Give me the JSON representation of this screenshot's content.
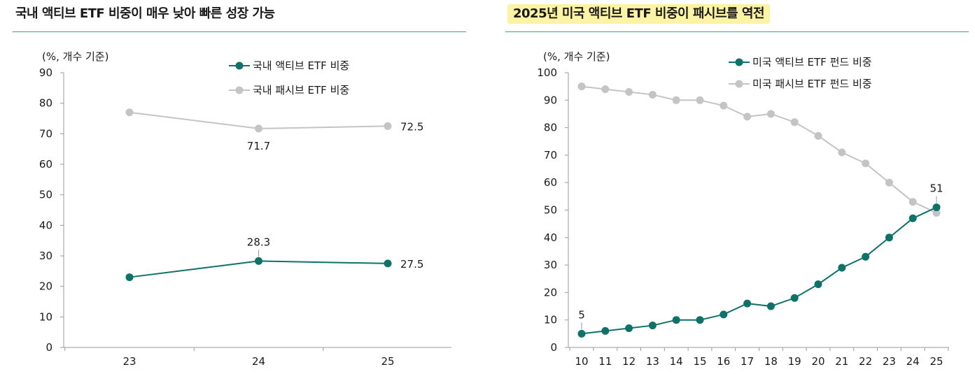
{
  "charts": {
    "left": {
      "title": "국내 액티브 ETF 비중이 매우 낮아 빠른 성장 가능",
      "unit": "(%, 개수 기준)"
    },
    "right": {
      "title": "2025년 미국 액티브 ETF 비중이 패시브를 역전",
      "unit": "(%, 개수 기준)"
    }
  },
  "chart_data": [
    {
      "type": "line",
      "title": "국내 액티브 ETF 비중이 매우 낮아 빠른 성장 가능",
      "ylabel": "(%, 개수 기준)",
      "x": [
        "23",
        "24",
        "25"
      ],
      "ylim": [
        0,
        90
      ],
      "yticks": [
        0,
        10,
        20,
        30,
        40,
        50,
        60,
        70,
        80,
        90
      ],
      "grid": false,
      "legend": "top-center",
      "series": [
        {
          "name": "국내 액티브 ETF 비중",
          "color": "#0e7268",
          "values": [
            23,
            28.3,
            27.5
          ]
        },
        {
          "name": "국내 패시브 ETF 비중",
          "color": "#c4c4c4",
          "values": [
            77,
            71.7,
            72.5
          ]
        }
      ],
      "annotations": [
        {
          "series": 0,
          "index": 1,
          "text": "28.3",
          "pos": "above"
        },
        {
          "series": 0,
          "index": 2,
          "text": "27.5",
          "pos": "right"
        },
        {
          "series": 1,
          "index": 1,
          "text": "71.7",
          "pos": "below"
        },
        {
          "series": 1,
          "index": 2,
          "text": "72.5",
          "pos": "right"
        }
      ]
    },
    {
      "type": "line",
      "title": "2025년 미국 액티브 ETF 비중이 패시브를 역전",
      "ylabel": "(%, 개수 기준)",
      "x": [
        "10",
        "11",
        "12",
        "13",
        "14",
        "15",
        "16",
        "17",
        "18",
        "19",
        "20",
        "21",
        "22",
        "23",
        "24",
        "25"
      ],
      "ylim": [
        0,
        100
      ],
      "yticks": [
        0,
        10,
        20,
        30,
        40,
        50,
        60,
        70,
        80,
        90,
        100
      ],
      "grid": false,
      "legend": "top-right",
      "series": [
        {
          "name": "미국 액티브 ETF 펀드 비중",
          "color": "#0e7268",
          "values": [
            5,
            6,
            7,
            8,
            10,
            10,
            12,
            16,
            15,
            18,
            23,
            29,
            33,
            40,
            47,
            51
          ]
        },
        {
          "name": "미국 패시브 ETF 펀드 비중",
          "color": "#c4c4c4",
          "values": [
            95,
            94,
            93,
            92,
            90,
            90,
            88,
            84,
            85,
            82,
            77,
            71,
            67,
            60,
            53,
            49
          ]
        }
      ],
      "annotations": [
        {
          "series": 0,
          "index": 0,
          "text": "5",
          "pos": "above"
        },
        {
          "series": 0,
          "index": 15,
          "text": "51",
          "pos": "above"
        }
      ]
    }
  ]
}
